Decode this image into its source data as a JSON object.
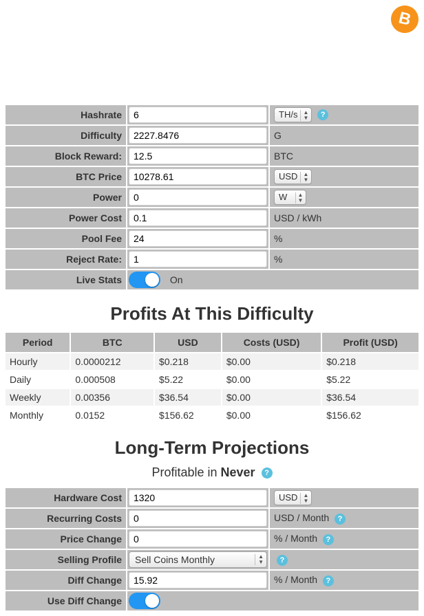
{
  "logo": {
    "glyph": "B"
  },
  "inputs": {
    "hashrate": {
      "label": "Hashrate",
      "value": "6",
      "unit_select": "TH/s",
      "help": true
    },
    "difficulty": {
      "label": "Difficulty",
      "value": "2227.8476",
      "unit_text": "G"
    },
    "block_reward": {
      "label": "Block Reward:",
      "value": "12.5",
      "unit_text": "BTC"
    },
    "btc_price": {
      "label": "BTC Price",
      "value": "10278.61",
      "unit_select": "USD"
    },
    "power": {
      "label": "Power",
      "value": "0",
      "unit_select": "W"
    },
    "power_cost": {
      "label": "Power Cost",
      "value": "0.1",
      "unit_text": "USD / kWh"
    },
    "pool_fee": {
      "label": "Pool Fee",
      "value": "24",
      "unit_text": "%"
    },
    "reject_rate": {
      "label": "Reject Rate:",
      "value": "1",
      "unit_text": "%"
    },
    "live_stats": {
      "label": "Live Stats",
      "on_text": "On"
    }
  },
  "profits": {
    "title": "Profits At This Difficulty",
    "columns": [
      "Period",
      "BTC",
      "USD",
      "Costs (USD)",
      "Profit (USD)"
    ],
    "rows": [
      [
        "Hourly",
        "0.0000212",
        "$0.218",
        "$0.00",
        "$0.218"
      ],
      [
        "Daily",
        "0.000508",
        "$5.22",
        "$0.00",
        "$5.22"
      ],
      [
        "Weekly",
        "0.00356",
        "$36.54",
        "$0.00",
        "$36.54"
      ],
      [
        "Monthly",
        "0.0152",
        "$156.62",
        "$0.00",
        "$156.62"
      ]
    ]
  },
  "projections": {
    "title": "Long-Term Projections",
    "sub_prefix": "Profitable in ",
    "sub_value": "Never",
    "hardware_cost": {
      "label": "Hardware Cost",
      "value": "1320",
      "unit_select": "USD"
    },
    "recurring_costs": {
      "label": "Recurring Costs",
      "value": "0",
      "unit_text": "USD / Month",
      "help": true
    },
    "price_change": {
      "label": "Price Change",
      "value": "0",
      "unit_text": "% / Month",
      "help": true
    },
    "selling_profile": {
      "label": "Selling Profile",
      "value": "Sell Coins Monthly",
      "help": true
    },
    "diff_change": {
      "label": "Diff Change",
      "value": "15.92",
      "unit_text": "% / Month",
      "help": true
    },
    "use_diff_change": {
      "label": "Use Diff Change"
    }
  }
}
